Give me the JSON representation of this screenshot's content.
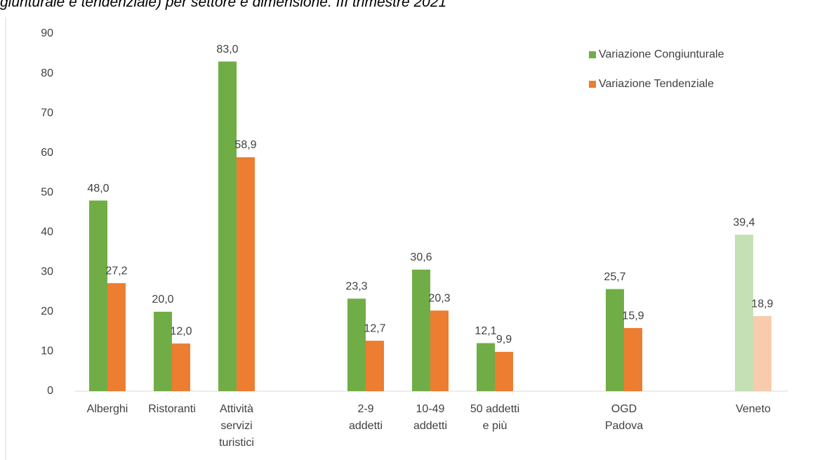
{
  "chart_data": {
    "type": "bar",
    "title": "giunturale e tendenziale) per settore e dimensione. III trimestre 2021",
    "categories": [
      [
        "Alberghi"
      ],
      [
        "Ristoranti"
      ],
      [
        "Attività",
        "servizi",
        "turistici"
      ],
      null,
      [
        "2-9",
        "addetti"
      ],
      [
        "10-49",
        "addetti"
      ],
      [
        "50 addetti",
        "e più"
      ],
      null,
      [
        "OGD",
        "Padova"
      ],
      null,
      [
        "Veneto"
      ]
    ],
    "series": [
      {
        "name": "Variazione Congiunturale",
        "color": "#70ad47",
        "colors": [
          null,
          null,
          null,
          null,
          null,
          null,
          null,
          null,
          null,
          null,
          "#c5e0b4"
        ],
        "values": [
          48.0,
          20.0,
          83.0,
          null,
          23.3,
          30.6,
          12.1,
          null,
          25.7,
          null,
          39.4
        ],
        "value_labels": [
          "48,0",
          "20,0",
          "83,0",
          null,
          "23,3",
          "30,6",
          "12,1",
          null,
          "25,7",
          null,
          "39,4"
        ]
      },
      {
        "name": "Variazione Tendenziale",
        "color": "#ed7d31",
        "colors": [
          null,
          null,
          null,
          null,
          null,
          null,
          null,
          null,
          null,
          null,
          "#f8cbad"
        ],
        "values": [
          27.2,
          12.0,
          58.9,
          null,
          12.7,
          20.3,
          9.9,
          null,
          15.9,
          null,
          18.9
        ],
        "value_labels": [
          "27,2",
          "12,0",
          "58,9",
          null,
          "12,7",
          "20,3",
          "9,9",
          null,
          "15,9",
          null,
          "18,9"
        ]
      }
    ],
    "ylim": [
      0,
      90
    ],
    "yticks": [
      0,
      10,
      20,
      30,
      40,
      50,
      60,
      70,
      80,
      90
    ],
    "grid": false,
    "legend": "top-right"
  }
}
